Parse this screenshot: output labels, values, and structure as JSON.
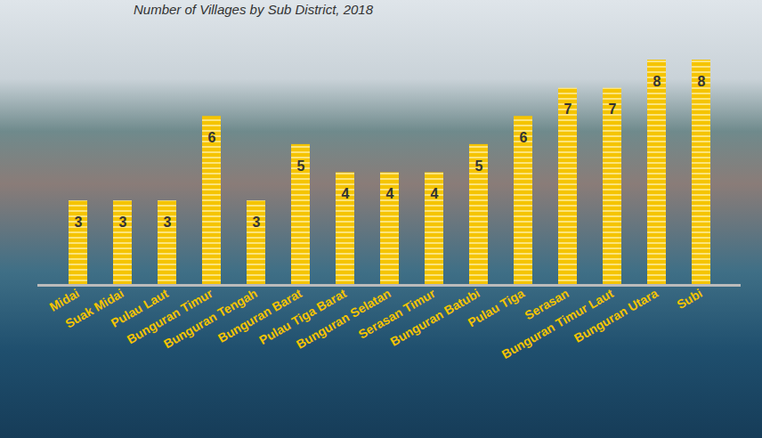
{
  "chart_data": {
    "type": "bar",
    "title": "Number of Villages by Sub District, 2018",
    "categories": [
      "Midai",
      "Suak Midai",
      "Pulau Laut",
      "Bunguran Timur",
      "Bunguran Tengah",
      "Bunguran Barat",
      "Pulau Tiga Barat",
      "Bunguran Selatan",
      "Serasan Timur",
      "Bunguran Batubi",
      "Pulau Tiga",
      "Serasan",
      "Bunguran Timur Laut",
      "Bunguran Utara",
      "Subi"
    ],
    "values": [
      3,
      3,
      3,
      6,
      3,
      5,
      4,
      4,
      4,
      5,
      6,
      7,
      7,
      8,
      8
    ],
    "color": "#f5c400",
    "ylim": [
      0,
      8
    ],
    "data_labels": true,
    "tick_labels": "x"
  }
}
